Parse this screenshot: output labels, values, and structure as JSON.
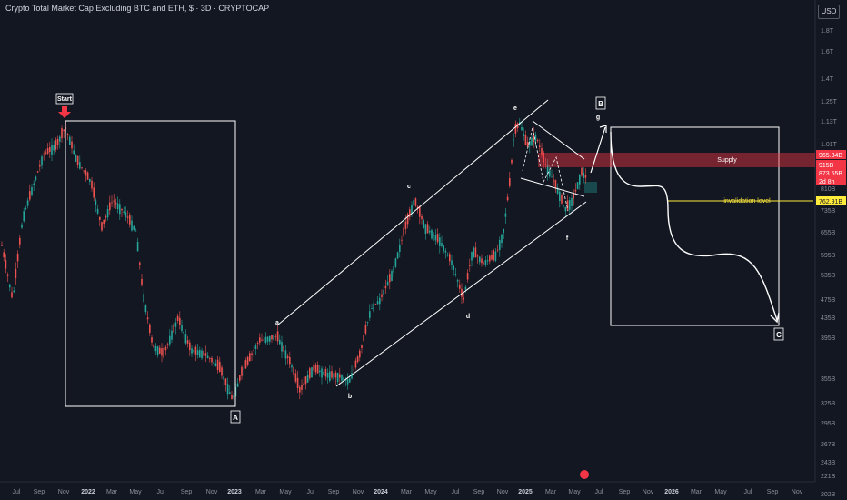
{
  "header": {
    "title": "Crypto Total Market Cap Excluding BTC and ETH, $ · 3D · CRYPTOCAP",
    "currency": "USD"
  },
  "chart_data": {
    "type": "candlestick",
    "scale": "log",
    "y_unit": "USD",
    "y_ticks": [
      "1.8T",
      "1.6T",
      "1.4T",
      "1.25T",
      "1.13T",
      "1.01T",
      "910B",
      "810B",
      "735B",
      "655B",
      "595B",
      "535B",
      "475B",
      "435B",
      "395B",
      "355B",
      "325B",
      "295B",
      "267B",
      "243B",
      "221B",
      "202B"
    ],
    "x_ticks": [
      "Jul",
      "Sep",
      "Nov",
      "2022",
      "Mar",
      "May",
      "Jul",
      "Sep",
      "Nov",
      "2023",
      "Mar",
      "May",
      "Jul",
      "Sep",
      "Nov",
      "2024",
      "Mar",
      "May",
      "Jul",
      "Sep",
      "Nov",
      "2025",
      "Mar",
      "May",
      "Jul",
      "Sep",
      "Nov",
      "2026",
      "Mar",
      "May",
      "Jul",
      "Sep",
      "Nov"
    ],
    "price_markers": [
      {
        "label": "965.34B",
        "color": "#f23645"
      },
      {
        "label": "915B",
        "color": "#f23645"
      },
      {
        "label": "873.55B",
        "color": "#f23645"
      },
      {
        "label": "2d 8h",
        "color": "#f23645"
      },
      {
        "label": "762.91B",
        "color": "#ffeb3b"
      }
    ],
    "wave_labels": [
      "a",
      "b",
      "c",
      "d",
      "e",
      "f",
      "g"
    ],
    "box_labels": [
      "A",
      "B",
      "C"
    ],
    "annotations": {
      "start": "Start",
      "supply": "Supply",
      "invalidation": "invalidation level"
    },
    "colors": {
      "up": "#26a69a",
      "down": "#ef5350",
      "supply_zone": "#f23645",
      "invalidation": "#ffeb3b"
    }
  }
}
